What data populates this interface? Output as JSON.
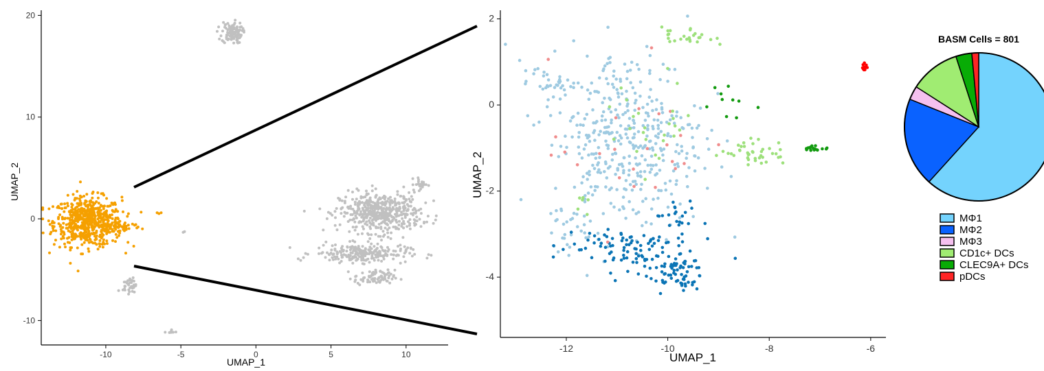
{
  "chart_data": [
    {
      "type": "scatter",
      "panel": "overview",
      "xlabel": "UMAP_1",
      "ylabel": "UMAP_2",
      "xlim": [
        -14.3,
        12.8
      ],
      "ylim": [
        -12.4,
        20.5
      ],
      "xticks": [
        -10,
        -5,
        0,
        5,
        10
      ],
      "yticks": [
        -10,
        0,
        10,
        20
      ],
      "tick_labels_x": [
        "-10",
        "-5",
        "0",
        "5",
        "10"
      ],
      "tick_labels_y": [
        "-10",
        "0",
        "10",
        "20"
      ],
      "grid": false,
      "series": [
        {
          "color": "#F5A000",
          "clusters": [
            {
              "center": [
                -11.2,
                -0.3
              ],
              "spread": [
                1.5,
                1.6
              ],
              "n": 620
            },
            {
              "center": [
                -9.0,
                -0.8
              ],
              "spread": [
                0.9,
                0.4
              ],
              "n": 60
            },
            {
              "center": [
                -6.5,
                0.6
              ],
              "spread": [
                0.2,
                0.2
              ],
              "n": 3
            }
          ]
        },
        {
          "color": "#C0C0C0",
          "clusters": [
            {
              "center": [
                -1.6,
                18.3
              ],
              "spread": [
                0.45,
                0.7
              ],
              "n": 110
            },
            {
              "center": [
                8.3,
                0.6
              ],
              "spread": [
                1.8,
                1.3
              ],
              "n": 500
            },
            {
              "center": [
                7.0,
                -3.4
              ],
              "spread": [
                2.1,
                0.6
              ],
              "n": 230
            },
            {
              "center": [
                7.9,
                -5.8
              ],
              "spread": [
                0.9,
                0.5
              ],
              "n": 80
            },
            {
              "center": [
                11.0,
                3.4
              ],
              "spread": [
                0.3,
                0.4
              ],
              "n": 25
            },
            {
              "center": [
                -8.4,
                -6.5
              ],
              "spread": [
                0.3,
                0.5
              ],
              "n": 40
            },
            {
              "center": [
                -5.7,
                -11.1
              ],
              "spread": [
                0.25,
                0.12
              ],
              "n": 8
            },
            {
              "center": [
                -4.8,
                -1.3
              ],
              "spread": [
                0.1,
                0.1
              ],
              "n": 2
            }
          ]
        }
      ]
    },
    {
      "type": "scatter",
      "panel": "zoom",
      "xlabel": "UMAP_1",
      "ylabel": "UMAP_2",
      "xlim": [
        -13.3,
        -5.7
      ],
      "ylim": [
        -5.4,
        2.2
      ],
      "xticks": [
        -12,
        -10,
        -8,
        -6
      ],
      "yticks": [
        -4,
        -2,
        0,
        2
      ],
      "tick_labels_x": [
        "-12",
        "-10",
        "-8",
        "-6"
      ],
      "tick_labels_y": [
        "-4",
        "-2",
        "0",
        "2"
      ],
      "grid": false,
      "series": [
        {
          "color": "#9ECAE1",
          "clusters": [
            {
              "center": [
                -10.8,
                -0.8
              ],
              "spread": [
                1.0,
                1.4
              ],
              "n": 420
            },
            {
              "center": [
                -12.4,
                0.5
              ],
              "spread": [
                0.35,
                0.2
              ],
              "n": 30
            },
            {
              "center": [
                -11.9,
                -3.0
              ],
              "spread": [
                0.25,
                0.4
              ],
              "n": 20
            }
          ]
        },
        {
          "color": "#0A74B5",
          "clusters": [
            {
              "center": [
                -10.9,
                -3.3
              ],
              "spread": [
                0.9,
                0.35
              ],
              "n": 90
            },
            {
              "center": [
                -9.9,
                -3.9
              ],
              "spread": [
                0.4,
                0.3
              ],
              "n": 70
            },
            {
              "center": [
                -9.8,
                -2.6
              ],
              "spread": [
                0.3,
                0.25
              ],
              "n": 20
            }
          ]
        },
        {
          "color": "#F08C8C",
          "clusters": [
            {
              "center": [
                -10.8,
                -1.0
              ],
              "spread": [
                1.0,
                1.3
              ],
              "n": 24
            }
          ]
        },
        {
          "color": "#9DE07B",
          "clusters": [
            {
              "center": [
                -9.6,
                1.6
              ],
              "spread": [
                0.35,
                0.15
              ],
              "n": 25
            },
            {
              "center": [
                -8.3,
                -1.1
              ],
              "spread": [
                0.45,
                0.2
              ],
              "n": 40
            },
            {
              "center": [
                -10.3,
                -0.5
              ],
              "spread": [
                0.6,
                0.8
              ],
              "n": 25
            },
            {
              "center": [
                -11.6,
                -2.2
              ],
              "spread": [
                0.15,
                0.15
              ],
              "n": 6
            }
          ]
        },
        {
          "color": "#129A0F",
          "clusters": [
            {
              "center": [
                -7.1,
                -1.0
              ],
              "spread": [
                0.18,
                0.05
              ],
              "n": 18
            },
            {
              "center": [
                -8.8,
                0.0
              ],
              "spread": [
                0.3,
                0.3
              ],
              "n": 10
            }
          ]
        },
        {
          "color": "#FF0000",
          "clusters": [
            {
              "center": [
                -6.1,
                0.88
              ],
              "spread": [
                0.06,
                0.06
              ],
              "n": 12
            }
          ]
        }
      ]
    },
    {
      "type": "pie",
      "title": "BASM Cells = 801",
      "start_angle_deg": 0,
      "direction": "clockwise",
      "labels": [
        "MΦ1",
        "MΦ2",
        "MΦ3",
        "CD1c+ DCs",
        "CLEC9A+ DCs",
        "pDCs"
      ],
      "values": [
        62.0,
        19.5,
        3.0,
        11.0,
        3.5,
        1.5
      ],
      "colors": [
        "#74D3FD",
        "#0A62FF",
        "#F5C0EF",
        "#A0EC72",
        "#08AC06",
        "#FF2525"
      ],
      "legend_position": "below"
    }
  ]
}
